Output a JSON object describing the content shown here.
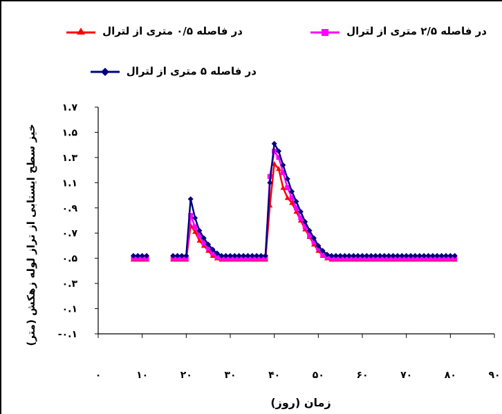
{
  "chart_data": {
    "type": "line",
    "title": "",
    "xlabel": "زمان (روز)",
    "ylabel": "خیز سطح ایستابی از تراز لوله زهکش (متر)",
    "xlim": [
      0,
      90
    ],
    "ylim": [
      -0.1,
      1.7
    ],
    "x_ticks": [
      0,
      10,
      20,
      30,
      40,
      50,
      60,
      70,
      80,
      90
    ],
    "x_tick_labels": [
      "۰",
      "۱۰",
      "۲۰",
      "۳۰",
      "۴۰",
      "۵۰",
      "۶۰",
      "۷۰",
      "۸۰",
      "۹۰"
    ],
    "y_ticks": [
      -0.1,
      0.1,
      0.3,
      0.5,
      0.7,
      0.9,
      1.1,
      1.3,
      1.5,
      1.7
    ],
    "y_tick_labels": [
      "-۰.۱",
      "۰.۱",
      "۰.۳",
      "۰.۵",
      "۰.۷",
      "۰.۹",
      "۱.۱",
      "۱.۳",
      "۱.۵",
      "۱.۷"
    ],
    "legend_position": "top",
    "series": [
      {
        "name": "در فاصله ۰/۵ متری از لترال",
        "color": "#ff0000",
        "marker": "triangle",
        "segments": [
          {
            "x": [
              8,
              9,
              10,
              11
            ],
            "y": [
              0.49,
              0.49,
              0.49,
              0.49
            ]
          },
          {
            "x": [
              17,
              18,
              19,
              20,
              21,
              22,
              23,
              24,
              25,
              26,
              27,
              28,
              29,
              30,
              31,
              32,
              33,
              34,
              35,
              36,
              37,
              38,
              39,
              40,
              41,
              42,
              43,
              44,
              45,
              46,
              47,
              48,
              49,
              50,
              51,
              52,
              53,
              54,
              55,
              56,
              57,
              58,
              59,
              60,
              61,
              62,
              63,
              64,
              65,
              66,
              67,
              68,
              69,
              70,
              71,
              72,
              73,
              74,
              75,
              76,
              77,
              78,
              79,
              80,
              81
            ],
            "y": [
              0.49,
              0.49,
              0.49,
              0.49,
              0.76,
              0.71,
              0.64,
              0.6,
              0.56,
              0.52,
              0.5,
              0.49,
              0.49,
              0.49,
              0.49,
              0.49,
              0.49,
              0.49,
              0.49,
              0.49,
              0.49,
              0.49,
              0.92,
              1.25,
              1.21,
              1.06,
              0.98,
              0.94,
              0.87,
              0.8,
              0.73,
              0.67,
              0.61,
              0.56,
              0.52,
              0.5,
              0.49,
              0.49,
              0.49,
              0.49,
              0.49,
              0.49,
              0.49,
              0.49,
              0.49,
              0.49,
              0.49,
              0.49,
              0.49,
              0.49,
              0.49,
              0.49,
              0.49,
              0.49,
              0.49,
              0.49,
              0.49,
              0.49,
              0.49,
              0.49,
              0.49,
              0.49,
              0.49,
              0.49,
              0.49
            ]
          }
        ]
      },
      {
        "name": "در فاصله ۲/۵ متری از لترال",
        "color": "#ff00ff",
        "marker": "square",
        "segments": [
          {
            "x": [
              8,
              9,
              10,
              11
            ],
            "y": [
              0.5,
              0.5,
              0.5,
              0.5
            ]
          },
          {
            "x": [
              17,
              18,
              19,
              20,
              21,
              22,
              23,
              24,
              25,
              26,
              27,
              28,
              29,
              30,
              31,
              32,
              33,
              34,
              35,
              36,
              37,
              38,
              39,
              40,
              41,
              42,
              43,
              44,
              45,
              46,
              47,
              48,
              49,
              50,
              51,
              52,
              53,
              54,
              55,
              56,
              57,
              58,
              59,
              60,
              61,
              62,
              63,
              64,
              65,
              66,
              67,
              68,
              69,
              70,
              71,
              72,
              73,
              74,
              75,
              76,
              77,
              78,
              79,
              80,
              81
            ],
            "y": [
              0.5,
              0.5,
              0.5,
              0.5,
              0.84,
              0.75,
              0.68,
              0.62,
              0.58,
              0.54,
              0.51,
              0.5,
              0.5,
              0.5,
              0.5,
              0.5,
              0.5,
              0.5,
              0.5,
              0.5,
              0.5,
              0.5,
              1.15,
              1.35,
              1.3,
              1.18,
              1.06,
              0.98,
              0.9,
              0.82,
              0.75,
              0.68,
              0.63,
              0.58,
              0.53,
              0.51,
              0.5,
              0.5,
              0.5,
              0.5,
              0.5,
              0.5,
              0.5,
              0.5,
              0.5,
              0.5,
              0.5,
              0.5,
              0.5,
              0.5,
              0.5,
              0.5,
              0.5,
              0.5,
              0.5,
              0.5,
              0.5,
              0.5,
              0.5,
              0.5,
              0.5,
              0.5,
              0.5,
              0.5,
              0.5
            ]
          }
        ]
      },
      {
        "name": "در فاصله ۵ متری از لترال",
        "color": "#000080",
        "marker": "diamond",
        "segments": [
          {
            "x": [
              8,
              9,
              10,
              11
            ],
            "y": [
              0.52,
              0.52,
              0.52,
              0.52
            ]
          },
          {
            "x": [
              17,
              18,
              19,
              20,
              21,
              22,
              23,
              24,
              25,
              26,
              27,
              28,
              29,
              30,
              31,
              32,
              33,
              34,
              35,
              36,
              37,
              38,
              39,
              40,
              41,
              42,
              43,
              44,
              45,
              46,
              47,
              48,
              49,
              50,
              51,
              52,
              53,
              54,
              55,
              56,
              57,
              58,
              59,
              60,
              61,
              62,
              63,
              64,
              65,
              66,
              67,
              68,
              69,
              70,
              71,
              72,
              73,
              74,
              75,
              76,
              77,
              78,
              79,
              80,
              81
            ],
            "y": [
              0.52,
              0.52,
              0.52,
              0.52,
              0.97,
              0.82,
              0.72,
              0.66,
              0.61,
              0.57,
              0.54,
              0.52,
              0.52,
              0.52,
              0.52,
              0.52,
              0.52,
              0.52,
              0.52,
              0.52,
              0.52,
              0.52,
              1.1,
              1.41,
              1.35,
              1.24,
              1.13,
              1.03,
              0.95,
              0.87,
              0.79,
              0.72,
              0.66,
              0.6,
              0.56,
              0.53,
              0.52,
              0.52,
              0.52,
              0.52,
              0.52,
              0.52,
              0.52,
              0.52,
              0.52,
              0.52,
              0.52,
              0.52,
              0.52,
              0.52,
              0.52,
              0.52,
              0.52,
              0.52,
              0.52,
              0.52,
              0.52,
              0.52,
              0.52,
              0.52,
              0.52,
              0.52,
              0.52,
              0.52,
              0.52
            ]
          }
        ]
      }
    ]
  }
}
